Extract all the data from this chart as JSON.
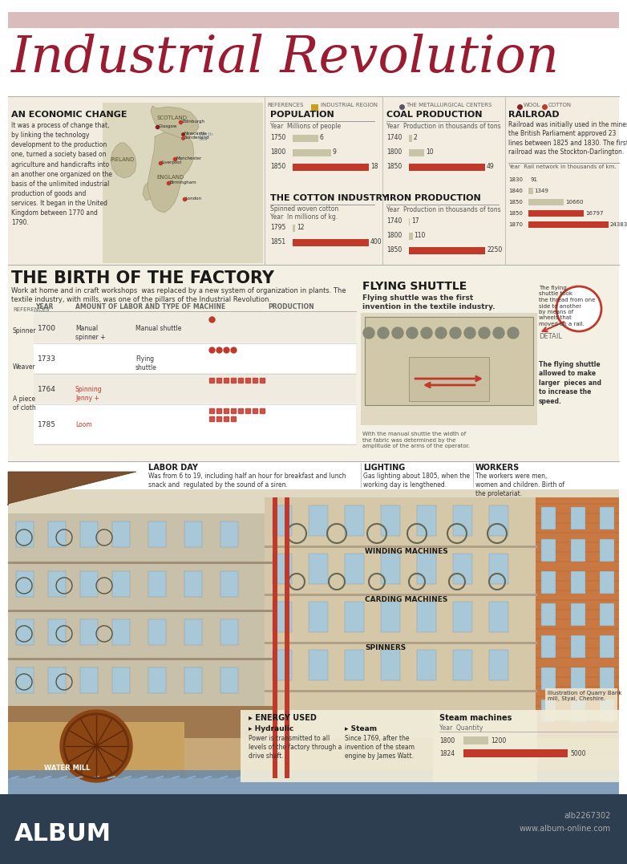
{
  "title": "Industrial Revolution",
  "title_color": "#9B1B30",
  "bg_color": "#FFFFFF",
  "top_bar_color": "#DBBCBC",
  "bottom_bar_color": "#2C3E50",
  "economic_change_title": "AN ECONOMIC CHANGE",
  "economic_change_text": "It was a process of change that,\nby linking the technology\ndevelopment to the production\none, turned a society based on\nagriculture and handicrafts into\nan another one organized on the\nbasis of the unlimited industrial\nproduction of goods and\nservices. It began in the United\nKingdom between 1770 and\n1790.",
  "population_data": {
    "title": "POPULATION",
    "subtitle": "Year  Millions of people",
    "years": [
      "1750",
      "1800",
      "1850"
    ],
    "values": [
      6,
      9,
      18
    ],
    "max_val": 18
  },
  "cotton_data": {
    "title": "THE COTTON INDUSTRY",
    "subtitle": "Spinned woven cotton",
    "subtitle2": "Year  In millions of kg.",
    "years": [
      "1795",
      "1851"
    ],
    "values": [
      12,
      400
    ],
    "max_val": 400
  },
  "coal_data": {
    "title": "COAL PRODUCTION",
    "subtitle": "Year  Production in thousands of tons",
    "years": [
      "1740",
      "1800",
      "1850"
    ],
    "values": [
      2,
      10,
      49
    ],
    "max_val": 49
  },
  "iron_data": {
    "title": "IRON PRODUCTION",
    "subtitle": "Year  Production in thousands of tons",
    "years": [
      "1740",
      "1800",
      "1850"
    ],
    "values": [
      17,
      110,
      2250
    ],
    "max_val": 2250
  },
  "railroad_data": {
    "title": "RAILROAD",
    "text": "Railroad was initially used in the mines,\nthe British Parliament approved 23\nlines between 1825 and 1830. The first\nrailroad was the Stockton-Darlington.",
    "subtitle": "Year  Rail network in thousands of km.",
    "years": [
      "1830",
      "1840",
      "1850",
      "1850",
      "1870"
    ],
    "values": [
      91,
      1349,
      10660,
      16797,
      24383
    ],
    "max_val": 24383
  },
  "factory_title": "THE BIRTH OF THE FACTORY",
  "factory_subtitle": "Work at home and in craft workshops  was replaced by a new system of organization in plants. The\ntextile industry, with mills, was one of the pillars of the Industrial Revolution.",
  "flying_shuttle_title": "FLYING SHUTTLE",
  "flying_shuttle_subtitle": "Flying shuttle was the first\ninvention in the textile industry.",
  "labor_day_title": "LABOR DAY",
  "labor_day_text": "Was from 6 to 19, including half an hour for breakfast and lunch\nsnack and  regulated by the sound of a siren.",
  "lighting_title": "LIGHTING",
  "lighting_text": "Gas lighting about 1805, when the\nworking day is lengthened.",
  "workers_title": "WORKERS",
  "workers_text": "The workers were men,\nwomen and children. Birth of\nthe proletariat.",
  "energy_title": "ENERGY USED",
  "hydraulic_title": "Hydraulic",
  "hydraulic_text": "Power is transmitted to all\nlevels of the factory through a\ndrive shaft.",
  "steam_title": "Steam",
  "steam_text": "Since 1769, after the\ninvention of the steam\nengine by James Watt.",
  "steam_machines_title": "Steam machines",
  "steam_data": {
    "subtitle": "Year  Quantity",
    "years": [
      "1800",
      "1824"
    ],
    "values": [
      1200,
      5000
    ],
    "max_val": 5000
  },
  "bar_color_normal": "#C8C4A8",
  "bar_color_highlight": "#C0392B",
  "info_bg": "#F2EDE0",
  "factory_bg": "#E8E2D0"
}
